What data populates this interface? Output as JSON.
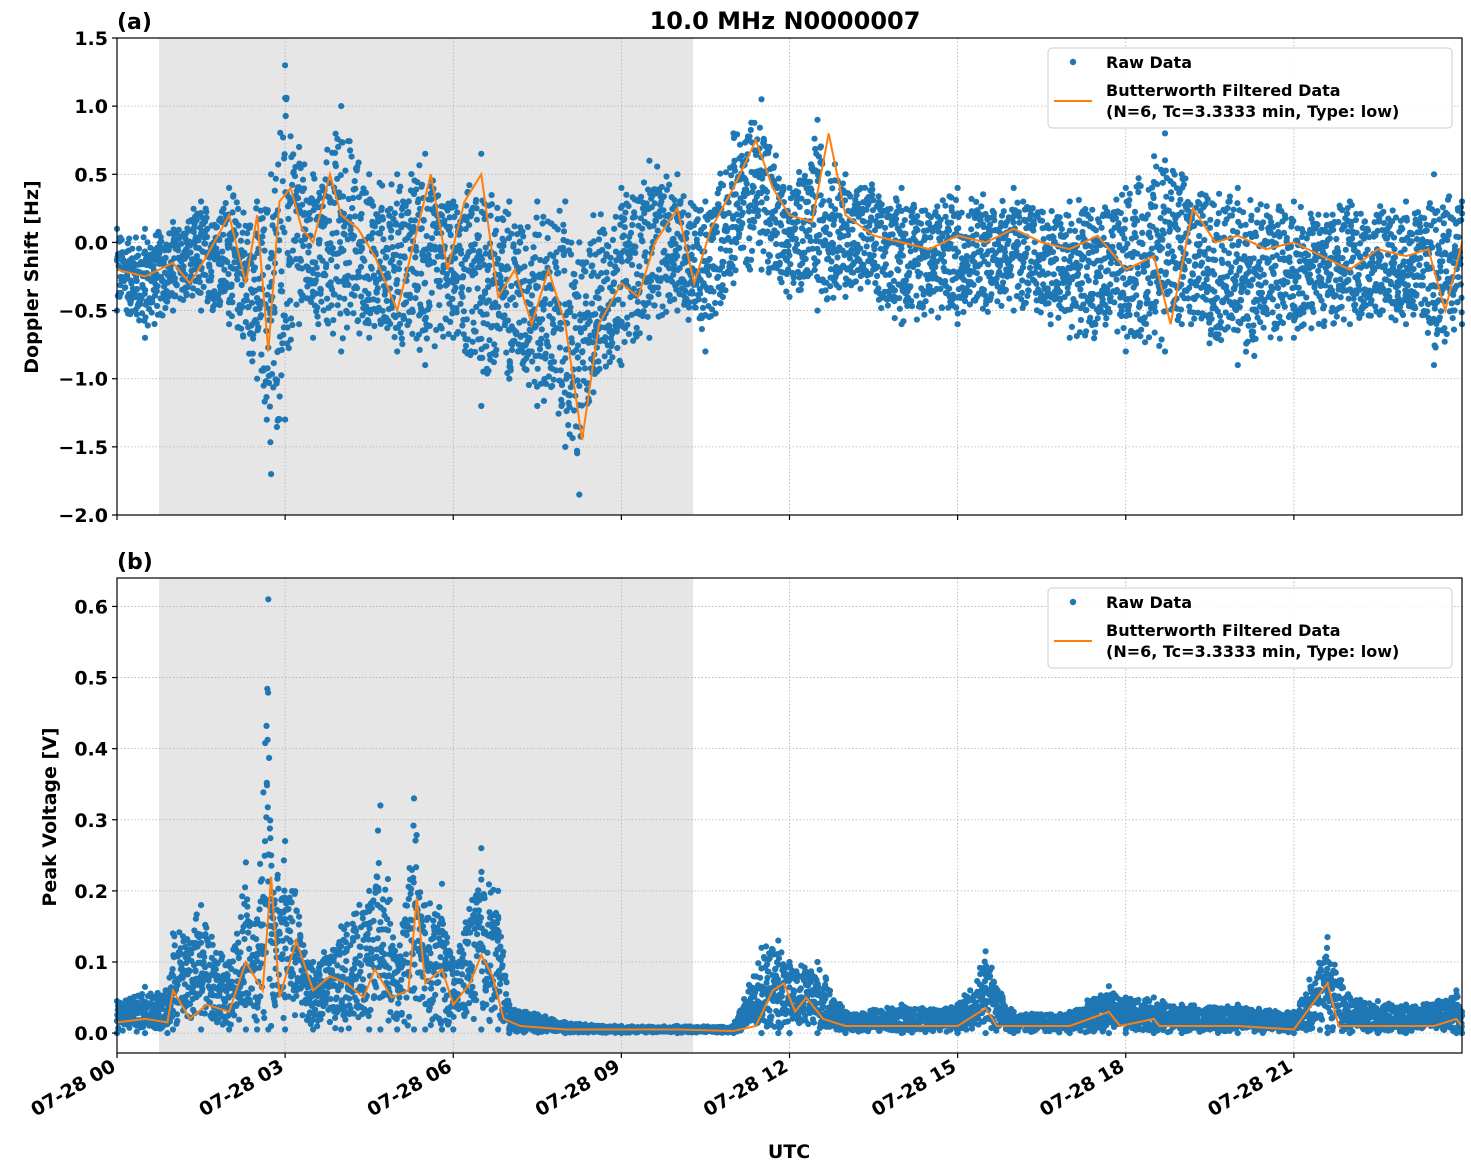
{
  "figure": {
    "title": "10.0 MHz N0000007"
  },
  "chart_data": [
    {
      "type": "scatter",
      "panel_label": "(a)",
      "title": "10.0 MHz N0000007",
      "xlabel": "",
      "ylabel": "Doppler Shift [Hz]",
      "x_unit": "hours UTC since 07-28 00:00",
      "xlim": [
        0,
        24
      ],
      "ylim": [
        -2.0,
        1.5
      ],
      "yticks": [
        -2.0,
        -1.5,
        -1.0,
        -0.5,
        0.0,
        0.5,
        1.0,
        1.5
      ],
      "ytick_labels": [
        "−2.0",
        "−1.5",
        "−1.0",
        "−0.5",
        "0.0",
        "0.5",
        "1.0",
        "1.5"
      ],
      "grid": true,
      "shaded_region": {
        "x_start": 0.75,
        "x_end": 10.28,
        "color": "#e6e6e6"
      },
      "legend": {
        "placement": "top-right",
        "entries": [
          {
            "label": "Raw Data",
            "marker": "dot",
            "color": "#1f77b4"
          },
          {
            "label": "Butterworth Filtered Data",
            "label_line2": "(N=6, Tc=3.3333 min, Type: low)",
            "marker": "line",
            "color": "#ff7f0e"
          }
        ]
      },
      "series": [
        {
          "name": "Raw Data (envelope)",
          "color": "#1f77b4",
          "x": [
            0.0,
            0.5,
            1.0,
            1.5,
            2.0,
            2.5,
            2.75,
            3.0,
            3.25,
            3.5,
            4.0,
            4.5,
            5.0,
            5.5,
            6.0,
            6.5,
            7.0,
            7.5,
            8.0,
            8.25,
            8.5,
            9.0,
            9.5,
            10.0,
            10.5,
            11.0,
            11.5,
            12.0,
            12.5,
            13.0,
            14.0,
            15.0,
            16.0,
            17.0,
            18.0,
            18.7,
            19.0,
            20.0,
            21.0,
            22.0,
            23.0,
            23.5,
            24.0
          ],
          "upper": [
            0.1,
            0.1,
            0.15,
            0.3,
            0.4,
            0.3,
            0.5,
            1.3,
            0.7,
            0.5,
            1.0,
            0.5,
            0.5,
            0.65,
            0.3,
            0.65,
            0.3,
            0.3,
            0.3,
            0.0,
            0.2,
            0.4,
            0.6,
            0.5,
            0.3,
            0.8,
            1.05,
            0.4,
            0.9,
            0.5,
            0.4,
            0.4,
            0.4,
            0.3,
            0.4,
            0.8,
            0.5,
            0.4,
            0.3,
            0.3,
            0.3,
            0.5,
            0.3
          ],
          "lower": [
            -0.5,
            -0.7,
            -0.5,
            -0.5,
            -0.6,
            -1.0,
            -1.7,
            -1.3,
            -0.6,
            -0.7,
            -0.8,
            -0.7,
            -0.8,
            -0.9,
            -0.7,
            -1.2,
            -1.0,
            -1.2,
            -1.5,
            -1.85,
            -1.1,
            -0.9,
            -0.7,
            -0.5,
            -0.8,
            -0.3,
            -0.2,
            -0.4,
            -0.5,
            -0.4,
            -0.6,
            -0.6,
            -0.5,
            -0.7,
            -0.8,
            -0.8,
            -0.6,
            -0.9,
            -0.7,
            -0.6,
            -0.6,
            -0.9,
            -0.6
          ]
        },
        {
          "name": "Butterworth Filtered Data",
          "color": "#ff7f0e",
          "x": [
            0.0,
            0.5,
            1.0,
            1.3,
            1.6,
            2.0,
            2.3,
            2.5,
            2.7,
            2.9,
            3.1,
            3.3,
            3.5,
            3.8,
            4.0,
            4.3,
            4.6,
            5.0,
            5.3,
            5.6,
            5.9,
            6.2,
            6.5,
            6.8,
            7.1,
            7.4,
            7.7,
            8.0,
            8.3,
            8.6,
            9.0,
            9.3,
            9.6,
            10.0,
            10.3,
            10.6,
            11.0,
            11.4,
            11.7,
            12.0,
            12.4,
            12.7,
            13.0,
            13.5,
            14.0,
            14.5,
            15.0,
            15.5,
            16.0,
            16.5,
            17.0,
            17.5,
            18.0,
            18.5,
            18.8,
            19.2,
            19.6,
            20.0,
            20.5,
            21.0,
            21.5,
            22.0,
            22.5,
            23.0,
            23.4,
            23.7,
            24.0
          ],
          "y": [
            -0.2,
            -0.25,
            -0.15,
            -0.3,
            -0.1,
            0.2,
            -0.3,
            0.2,
            -0.8,
            0.3,
            0.4,
            0.1,
            0.0,
            0.5,
            0.2,
            0.1,
            -0.1,
            -0.5,
            0.0,
            0.5,
            -0.2,
            0.3,
            0.5,
            -0.4,
            -0.2,
            -0.6,
            -0.2,
            -0.6,
            -1.45,
            -0.6,
            -0.3,
            -0.4,
            0.0,
            0.25,
            -0.3,
            0.1,
            0.4,
            0.75,
            0.4,
            0.2,
            0.15,
            0.8,
            0.2,
            0.05,
            0.0,
            -0.05,
            0.05,
            0.0,
            0.1,
            0.0,
            -0.05,
            0.05,
            -0.2,
            -0.1,
            -0.6,
            0.25,
            0.0,
            0.05,
            -0.05,
            0.0,
            -0.1,
            -0.2,
            -0.05,
            -0.1,
            -0.05,
            -0.5,
            0.0
          ]
        }
      ]
    },
    {
      "type": "scatter",
      "panel_label": "(b)",
      "xlabel": "UTC",
      "ylabel": "Peak Voltage [V]",
      "x_unit": "hours UTC since 07-28 00:00",
      "xlim": [
        0,
        24
      ],
      "ylim": [
        -0.028,
        0.64
      ],
      "yticks": [
        0.0,
        0.1,
        0.2,
        0.3,
        0.4,
        0.5,
        0.6
      ],
      "ytick_labels": [
        "0.0",
        "0.1",
        "0.2",
        "0.3",
        "0.4",
        "0.5",
        "0.6"
      ],
      "xticks": [
        0,
        3,
        6,
        9,
        12,
        15,
        18,
        21
      ],
      "xtick_labels": [
        "07-28 00",
        "07-28 03",
        "07-28 06",
        "07-28 09",
        "07-28 12",
        "07-28 15",
        "07-28 18",
        "07-28 21"
      ],
      "grid": true,
      "shaded_region": {
        "x_start": 0.75,
        "x_end": 10.28,
        "color": "#e6e6e6"
      },
      "legend": {
        "placement": "top-right",
        "entries": [
          {
            "label": "Raw Data",
            "marker": "dot",
            "color": "#1f77b4"
          },
          {
            "label": "Butterworth Filtered Data",
            "label_line2": "(N=6, Tc=3.3333 min, Type: low)",
            "marker": "line",
            "color": "#ff7f0e"
          }
        ]
      },
      "series": [
        {
          "name": "Raw Data (envelope)",
          "color": "#1f77b4",
          "x": [
            0.0,
            0.5,
            0.9,
            1.0,
            1.5,
            2.0,
            2.3,
            2.5,
            2.7,
            2.75,
            3.0,
            3.5,
            4.0,
            4.5,
            4.7,
            5.0,
            5.3,
            5.5,
            5.8,
            6.0,
            6.5,
            6.8,
            7.0,
            8.0,
            9.0,
            10.0,
            11.0,
            11.5,
            11.8,
            12.0,
            12.5,
            13.0,
            14.0,
            15.0,
            15.5,
            16.0,
            17.0,
            17.7,
            18.0,
            18.5,
            19.0,
            20.0,
            21.0,
            21.6,
            22.0,
            22.5,
            23.0,
            23.9,
            24.0
          ],
          "upper": [
            0.045,
            0.065,
            0.06,
            0.14,
            0.18,
            0.1,
            0.24,
            0.16,
            0.61,
            0.25,
            0.27,
            0.1,
            0.15,
            0.2,
            0.32,
            0.1,
            0.33,
            0.18,
            0.21,
            0.1,
            0.26,
            0.2,
            0.04,
            0.015,
            0.01,
            0.01,
            0.01,
            0.12,
            0.13,
            0.1,
            0.1,
            0.03,
            0.04,
            0.04,
            0.115,
            0.03,
            0.03,
            0.066,
            0.05,
            0.05,
            0.04,
            0.04,
            0.03,
            0.135,
            0.05,
            0.045,
            0.04,
            0.06,
            0.03
          ],
          "lower": [
            0.0,
            0.0,
            0.0,
            0.005,
            0.005,
            0.005,
            0.005,
            0.005,
            0.005,
            0.01,
            0.005,
            0.005,
            0.005,
            0.005,
            0.005,
            0.005,
            0.005,
            0.005,
            0.005,
            0.005,
            0.005,
            0.005,
            0.0,
            0.0,
            0.0,
            0.0,
            0.0,
            0.0,
            0.0,
            0.0,
            0.0,
            0.0,
            0.0,
            0.0,
            0.0,
            0.0,
            0.0,
            0.0,
            0.0,
            0.0,
            0.0,
            0.0,
            0.0,
            0.0,
            0.0,
            0.0,
            0.0,
            0.0,
            0.0
          ]
        },
        {
          "name": "Butterworth Filtered Data",
          "color": "#ff7f0e",
          "x": [
            0.0,
            0.5,
            0.9,
            1.0,
            1.3,
            1.6,
            2.0,
            2.3,
            2.6,
            2.75,
            2.9,
            3.2,
            3.5,
            3.8,
            4.1,
            4.4,
            4.6,
            4.9,
            5.2,
            5.35,
            5.5,
            5.8,
            6.0,
            6.3,
            6.5,
            6.7,
            6.9,
            7.2,
            8.0,
            9.0,
            10.0,
            11.0,
            11.4,
            11.7,
            11.9,
            12.1,
            12.3,
            12.6,
            13.0,
            14.0,
            15.0,
            15.5,
            15.7,
            16.0,
            17.0,
            17.7,
            17.9,
            18.5,
            18.6,
            19.0,
            20.0,
            21.0,
            21.6,
            21.8,
            22.0,
            22.5,
            23.0,
            23.5,
            23.9,
            24.0
          ],
          "y": [
            0.015,
            0.02,
            0.015,
            0.06,
            0.02,
            0.04,
            0.03,
            0.1,
            0.06,
            0.22,
            0.05,
            0.13,
            0.06,
            0.08,
            0.07,
            0.05,
            0.09,
            0.05,
            0.06,
            0.19,
            0.07,
            0.09,
            0.04,
            0.07,
            0.11,
            0.08,
            0.02,
            0.01,
            0.005,
            0.005,
            0.005,
            0.003,
            0.01,
            0.06,
            0.07,
            0.03,
            0.05,
            0.02,
            0.01,
            0.01,
            0.01,
            0.035,
            0.01,
            0.01,
            0.01,
            0.03,
            0.01,
            0.02,
            0.01,
            0.01,
            0.01,
            0.005,
            0.07,
            0.01,
            0.01,
            0.01,
            0.01,
            0.01,
            0.02,
            0.01
          ]
        }
      ]
    }
  ]
}
